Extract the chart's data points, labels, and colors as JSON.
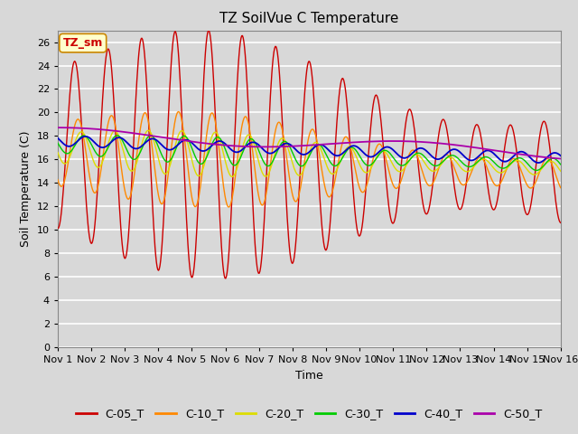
{
  "title": "TZ SoilVue C Temperature",
  "xlabel": "Time",
  "ylabel": "Soil Temperature (C)",
  "annotation": "TZ_sm",
  "ylim": [
    0,
    27
  ],
  "yticks": [
    0,
    2,
    4,
    6,
    8,
    10,
    12,
    14,
    16,
    18,
    20,
    22,
    24,
    26
  ],
  "xtick_labels": [
    "Nov 1",
    "Nov 2",
    "Nov 3",
    "Nov 4",
    "Nov 5",
    "Nov 6",
    "Nov 7",
    "Nov 8",
    "Nov 9",
    "Nov 10",
    "Nov 11",
    "Nov 12",
    "Nov 13",
    "Nov 14",
    "Nov 15",
    "Nov 16"
  ],
  "series_colors": {
    "C-05_T": "#cc0000",
    "C-10_T": "#ff8800",
    "C-20_T": "#dddd00",
    "C-30_T": "#00cc00",
    "C-40_T": "#0000cc",
    "C-50_T": "#aa00aa"
  },
  "bg_color": "#d8d8d8",
  "plot_bg_color": "#d8d8d8",
  "grid_color": "#ffffff",
  "title_fontsize": 11,
  "axis_label_fontsize": 9,
  "tick_fontsize": 8,
  "legend_fontsize": 9
}
